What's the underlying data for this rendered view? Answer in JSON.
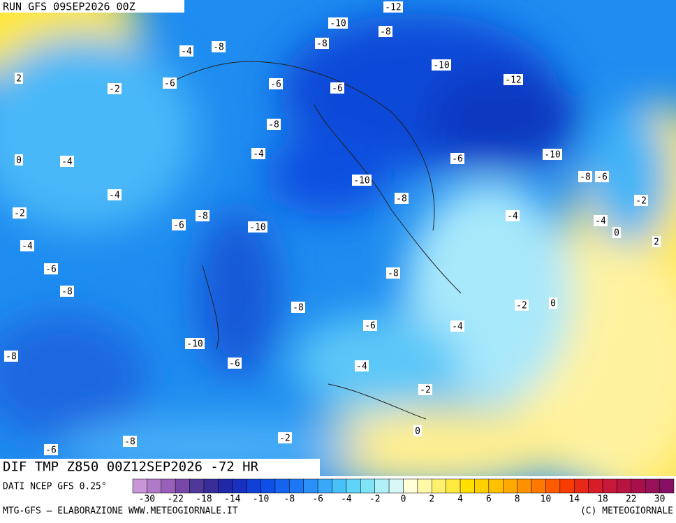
{
  "header": {
    "run": "RUN GFS 09SEP2026 00Z"
  },
  "map": {
    "contour_labels": [
      -12,
      -10,
      -8,
      -4,
      -8,
      -8,
      2,
      -10,
      -12,
      -2,
      -6,
      -6,
      -6,
      -8,
      0,
      -4,
      -4,
      -6,
      -10,
      -8,
      -6,
      -10,
      -4,
      -8,
      -2,
      -2,
      -8,
      -6,
      -4,
      -4,
      -10,
      0,
      2,
      -4,
      -6,
      -8,
      -8,
      -8,
      -2,
      0,
      -6,
      -4,
      -10,
      -8,
      -6,
      -4,
      -2,
      0,
      -6,
      -8,
      -2
    ]
  },
  "footer": {
    "product": "DIF TMP Z850 00Z12SEP2026 -72 HR",
    "source": "DATI NCEP GFS 0.25°",
    "credit_left": "MTG-GFS — ELABORAZIONE WWW.METEOGIORNALE.IT",
    "credit_right": "(C) METEOGIORNALE"
  },
  "colorbar": {
    "ticks": [
      -30,
      -22,
      -18,
      -14,
      -10,
      -8,
      -6,
      -4,
      -2,
      0,
      2,
      4,
      6,
      8,
      10,
      14,
      18,
      22,
      30
    ]
  }
}
